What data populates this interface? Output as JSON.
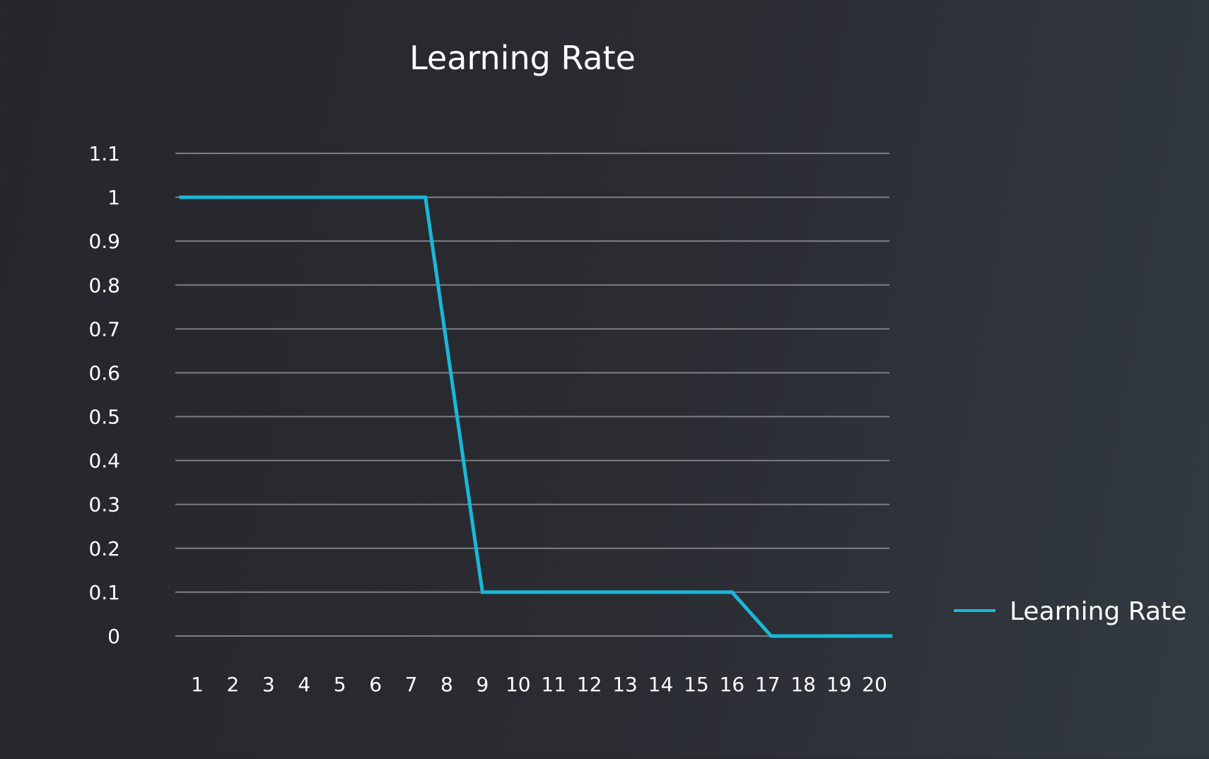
{
  "chart_data": {
    "type": "line",
    "title": "Learning Rate",
    "xlabel": "",
    "ylabel": "",
    "x": [
      1,
      2,
      3,
      4,
      5,
      6,
      7,
      8,
      9,
      10,
      11,
      12,
      13,
      14,
      15,
      16,
      17,
      18,
      19,
      20
    ],
    "x_tick_labels": [
      "1",
      "2",
      "3",
      "4",
      "5",
      "6",
      "7",
      "8",
      "9",
      "10",
      "11",
      "12",
      "13",
      "14",
      "15",
      "16",
      "17",
      "18",
      "19",
      "20"
    ],
    "y_ticks": [
      0,
      0.1,
      0.2,
      0.3,
      0.4,
      0.5,
      0.6,
      0.7,
      0.8,
      0.9,
      1,
      1.1
    ],
    "y_tick_labels": [
      "0",
      "0.1",
      "0.2",
      "0.3",
      "0.4",
      "0.5",
      "0.6",
      "0.7",
      "0.8",
      "0.9",
      "1",
      "1.1"
    ],
    "ylim": [
      0,
      1.1
    ],
    "grid": true,
    "legend_position": "right",
    "series": [
      {
        "name": "Learning Rate",
        "color": "#1ab8d6",
        "points": [
          [
            0.5,
            1
          ],
          [
            7.4,
            1
          ],
          [
            9,
            0.1
          ],
          [
            16,
            0.1
          ],
          [
            17.1,
            0
          ],
          [
            20.5,
            0
          ]
        ]
      }
    ]
  }
}
